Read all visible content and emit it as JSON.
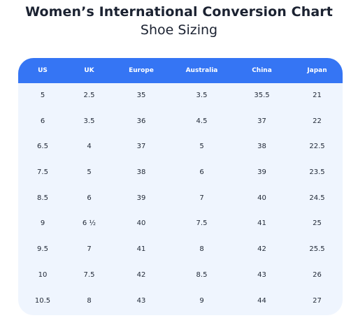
{
  "title": "Women’s International Conversion Chart",
  "subtitle": "Shoe Sizing",
  "table": {
    "headers": [
      "US",
      "UK",
      "Europe",
      "Australia",
      "China",
      "Japan"
    ],
    "rows": [
      [
        "5",
        "2.5",
        "35",
        "3.5",
        "35.5",
        "21"
      ],
      [
        "6",
        "3.5",
        "36",
        "4.5",
        "37",
        "22"
      ],
      [
        "6.5",
        "4",
        "37",
        "5",
        "38",
        "22.5"
      ],
      [
        "7.5",
        "5",
        "38",
        "6",
        "39",
        "23.5"
      ],
      [
        "8.5",
        "6",
        "39",
        "7",
        "40",
        "24.5"
      ],
      [
        "9",
        "6 ½",
        "40",
        "7.5",
        "41",
        "25"
      ],
      [
        "9.5",
        "7",
        "41",
        "8",
        "42",
        "25.5"
      ],
      [
        "10",
        "7.5",
        "42",
        "8.5",
        "43",
        "26"
      ],
      [
        "10.5",
        "8",
        "43",
        "9",
        "44",
        "27"
      ]
    ]
  },
  "colors": {
    "header_background": "#3575f4",
    "header_text": "#ffffff",
    "body_background": "#eff5fe",
    "text": "#222a38"
  }
}
